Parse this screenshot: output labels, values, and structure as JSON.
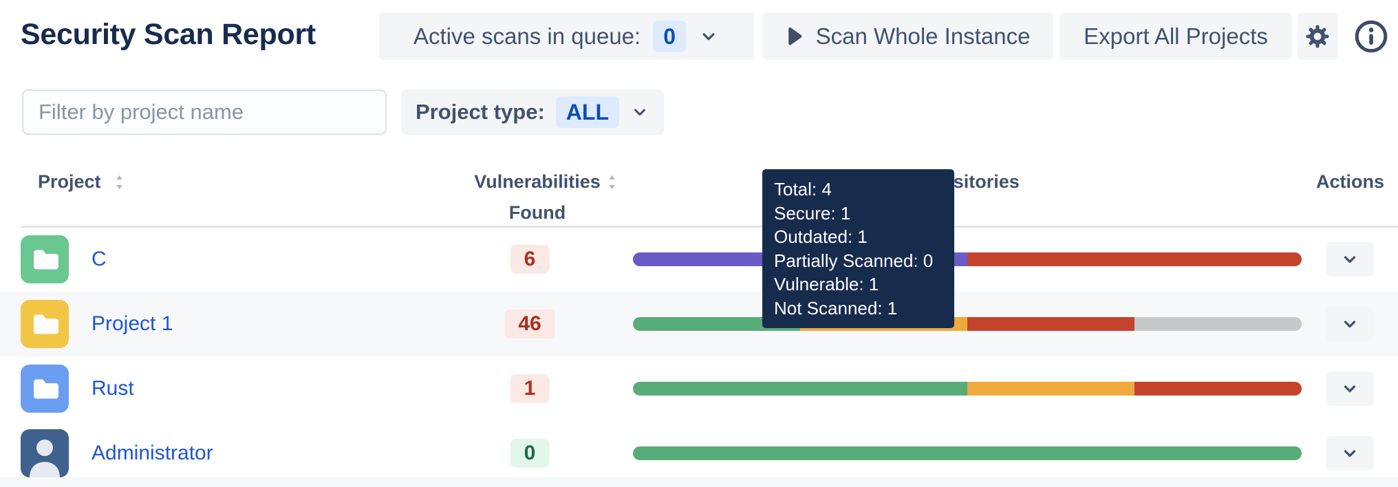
{
  "header": {
    "title": "Security Scan Report",
    "queue_label": "Active scans in queue:",
    "queue_count": "0",
    "scan_button_label": "Scan Whole Instance",
    "export_button_label": "Export All Projects"
  },
  "filters": {
    "name_filter_placeholder": "Filter by project name",
    "project_type_label": "Project type:",
    "project_type_value": "ALL"
  },
  "table": {
    "columns": {
      "project": "Project",
      "vulnerabilities_line1": "Vulnerabilities",
      "vulnerabilities_line2": "Found",
      "repositories": "Repositories",
      "actions": "Actions"
    },
    "rows": [
      {
        "name": "C",
        "avatar_type": "folder",
        "avatar_color": "#6AC78F",
        "vulnerabilities": "6",
        "badge_tone": "red",
        "bar": [
          {
            "status": "in_progress",
            "pct": 50
          },
          {
            "status": "vulnerable",
            "pct": 50
          }
        ]
      },
      {
        "name": "Project 1",
        "avatar_type": "folder",
        "avatar_color": "#F3C545",
        "vulnerabilities": "46",
        "badge_tone": "red",
        "bar": [
          {
            "status": "secure",
            "pct": 25
          },
          {
            "status": "outdated",
            "pct": 25
          },
          {
            "status": "vulnerable",
            "pct": 25
          },
          {
            "status": "not_scanned",
            "pct": 25
          }
        ]
      },
      {
        "name": "Rust",
        "avatar_type": "folder",
        "avatar_color": "#6B9DF2",
        "vulnerabilities": "1",
        "badge_tone": "red",
        "bar": [
          {
            "status": "secure",
            "pct": 50
          },
          {
            "status": "outdated",
            "pct": 25
          },
          {
            "status": "vulnerable",
            "pct": 25
          }
        ]
      },
      {
        "name": "Administrator",
        "avatar_type": "person",
        "avatar_color": "#40618D",
        "vulnerabilities": "0",
        "badge_tone": "green",
        "bar": [
          {
            "status": "secure",
            "pct": 100
          }
        ]
      }
    ]
  },
  "tooltip": {
    "lines": [
      "Total: 4",
      "Secure: 1",
      "Outdated: 1",
      "Partially Scanned: 0",
      "Vulnerable: 1",
      "Not Scanned: 1"
    ]
  },
  "status_colors": {
    "in_progress": "#6A5BC5",
    "secure": "#57AC79",
    "outdated": "#EFA93C",
    "vulnerable": "#C4432D",
    "not_scanned": "#C5C7C9"
  },
  "accent_colors": {
    "link": "#1E56CF",
    "count_badge_bg": "#DEEBFF",
    "count_badge_text": "#0B4DB8",
    "tooltip_bg": "#172B4D"
  }
}
